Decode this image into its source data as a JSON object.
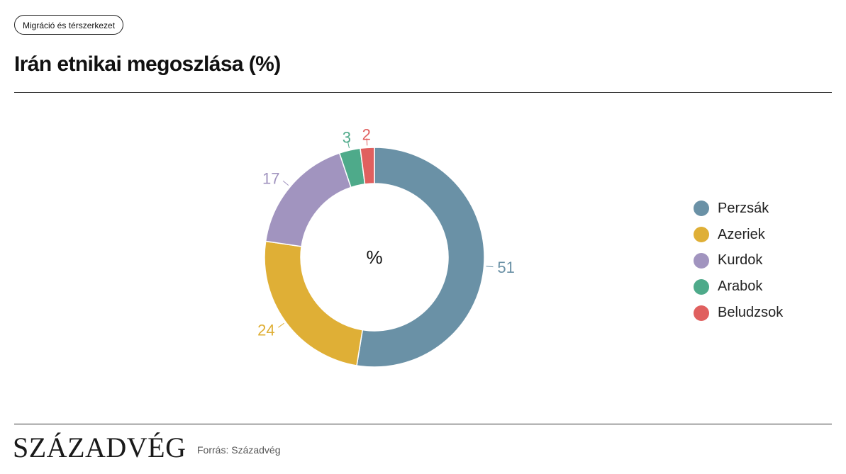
{
  "header": {
    "category_tag": "Migráció és térszerkezet",
    "title": "Irán etnikai megoszlása (%)"
  },
  "chart_data": {
    "type": "pie",
    "variant": "donut",
    "center_label": "%",
    "categories": [
      "Perzsák",
      "Azeriek",
      "Kurdok",
      "Arabok",
      "Beludzsok"
    ],
    "values": [
      51,
      24,
      17,
      3,
      2
    ],
    "colors": [
      "#6a91a6",
      "#dfaf36",
      "#a194bf",
      "#4eaa8a",
      "#e0605f"
    ],
    "legend_position": "right",
    "start_angle_deg": 0,
    "direction": "clockwise"
  },
  "footer": {
    "brand": "SZÁZADVÉG",
    "source": "Forrás: Századvég"
  }
}
